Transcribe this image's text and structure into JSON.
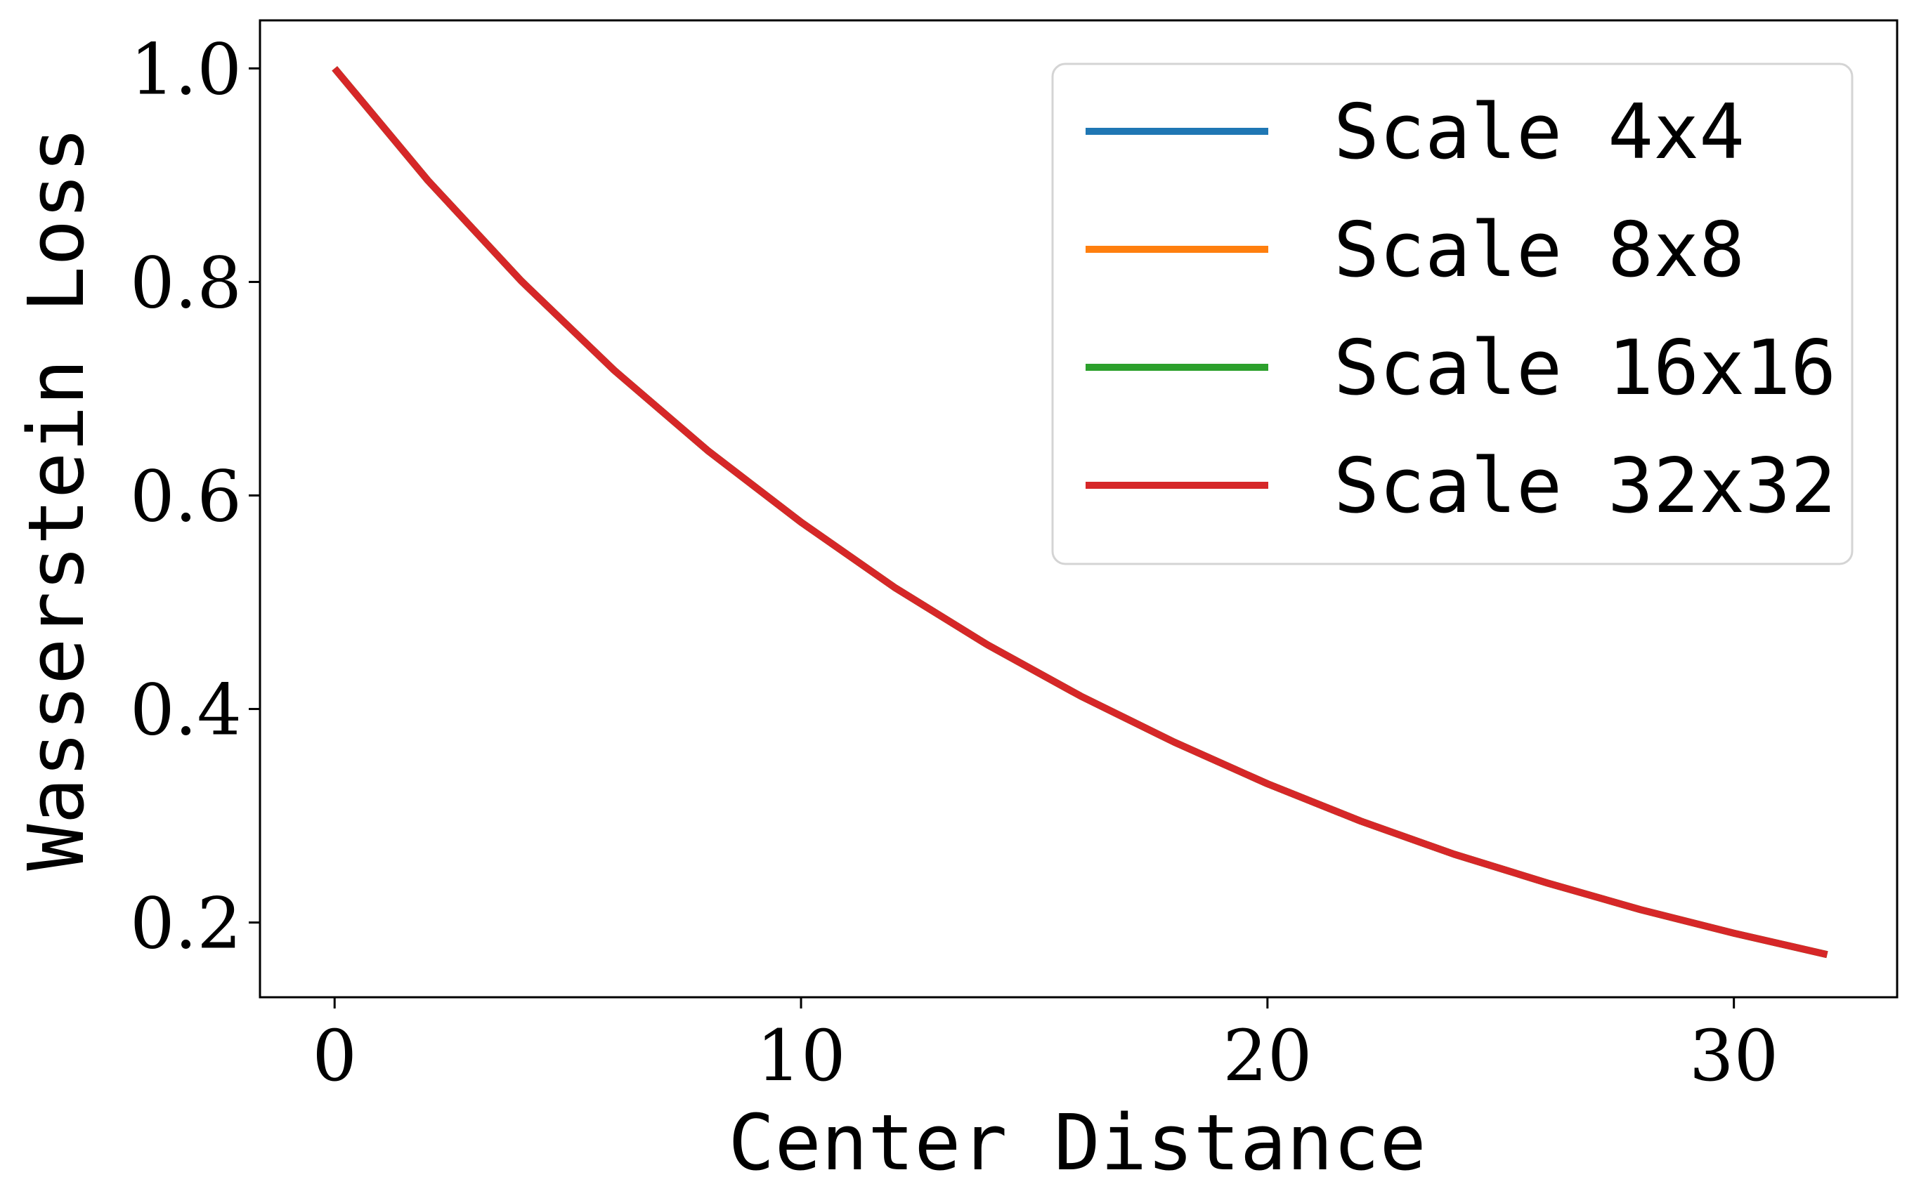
{
  "chart_data": {
    "type": "line",
    "title": "",
    "xlabel": "Center Distance",
    "ylabel": "Wasserstein Loss",
    "xlim": [
      -1.6,
      33.5
    ],
    "ylim": [
      0.13,
      1.045
    ],
    "xticks": [
      0,
      10,
      20,
      30
    ],
    "xtick_labels": [
      "0",
      "10",
      "20",
      "30"
    ],
    "yticks": [
      0.2,
      0.4,
      0.6,
      0.8,
      1.0
    ],
    "ytick_labels": [
      "0.2",
      "0.4",
      "0.6",
      "0.8",
      "1.0"
    ],
    "grid": false,
    "legend_position": "top-right",
    "x": [
      0,
      2,
      4,
      6,
      8,
      10,
      12,
      14,
      16,
      18,
      20,
      22,
      24,
      26,
      28,
      30,
      32
    ],
    "series": [
      {
        "name": "Scale 4x4",
        "color": "#1f77b4",
        "values": [
          1.0,
          0.895,
          0.801,
          0.717,
          0.642,
          0.575,
          0.514,
          0.46,
          0.412,
          0.369,
          0.33,
          0.295,
          0.264,
          0.237,
          0.212,
          0.19,
          0.17
        ]
      },
      {
        "name": "Scale 8x8",
        "color": "#ff7f0e",
        "values": [
          1.0,
          0.895,
          0.801,
          0.717,
          0.642,
          0.575,
          0.514,
          0.46,
          0.412,
          0.369,
          0.33,
          0.295,
          0.264,
          0.237,
          0.212,
          0.19,
          0.17
        ]
      },
      {
        "name": "Scale 16x16",
        "color": "#2ca02c",
        "values": [
          1.0,
          0.895,
          0.801,
          0.717,
          0.642,
          0.575,
          0.514,
          0.46,
          0.412,
          0.369,
          0.33,
          0.295,
          0.264,
          0.237,
          0.212,
          0.19,
          0.17
        ]
      },
      {
        "name": "Scale 32x32",
        "color": "#d62728",
        "values": [
          1.0,
          0.895,
          0.801,
          0.717,
          0.642,
          0.575,
          0.514,
          0.46,
          0.412,
          0.369,
          0.33,
          0.295,
          0.264,
          0.237,
          0.212,
          0.19,
          0.17
        ]
      }
    ]
  }
}
